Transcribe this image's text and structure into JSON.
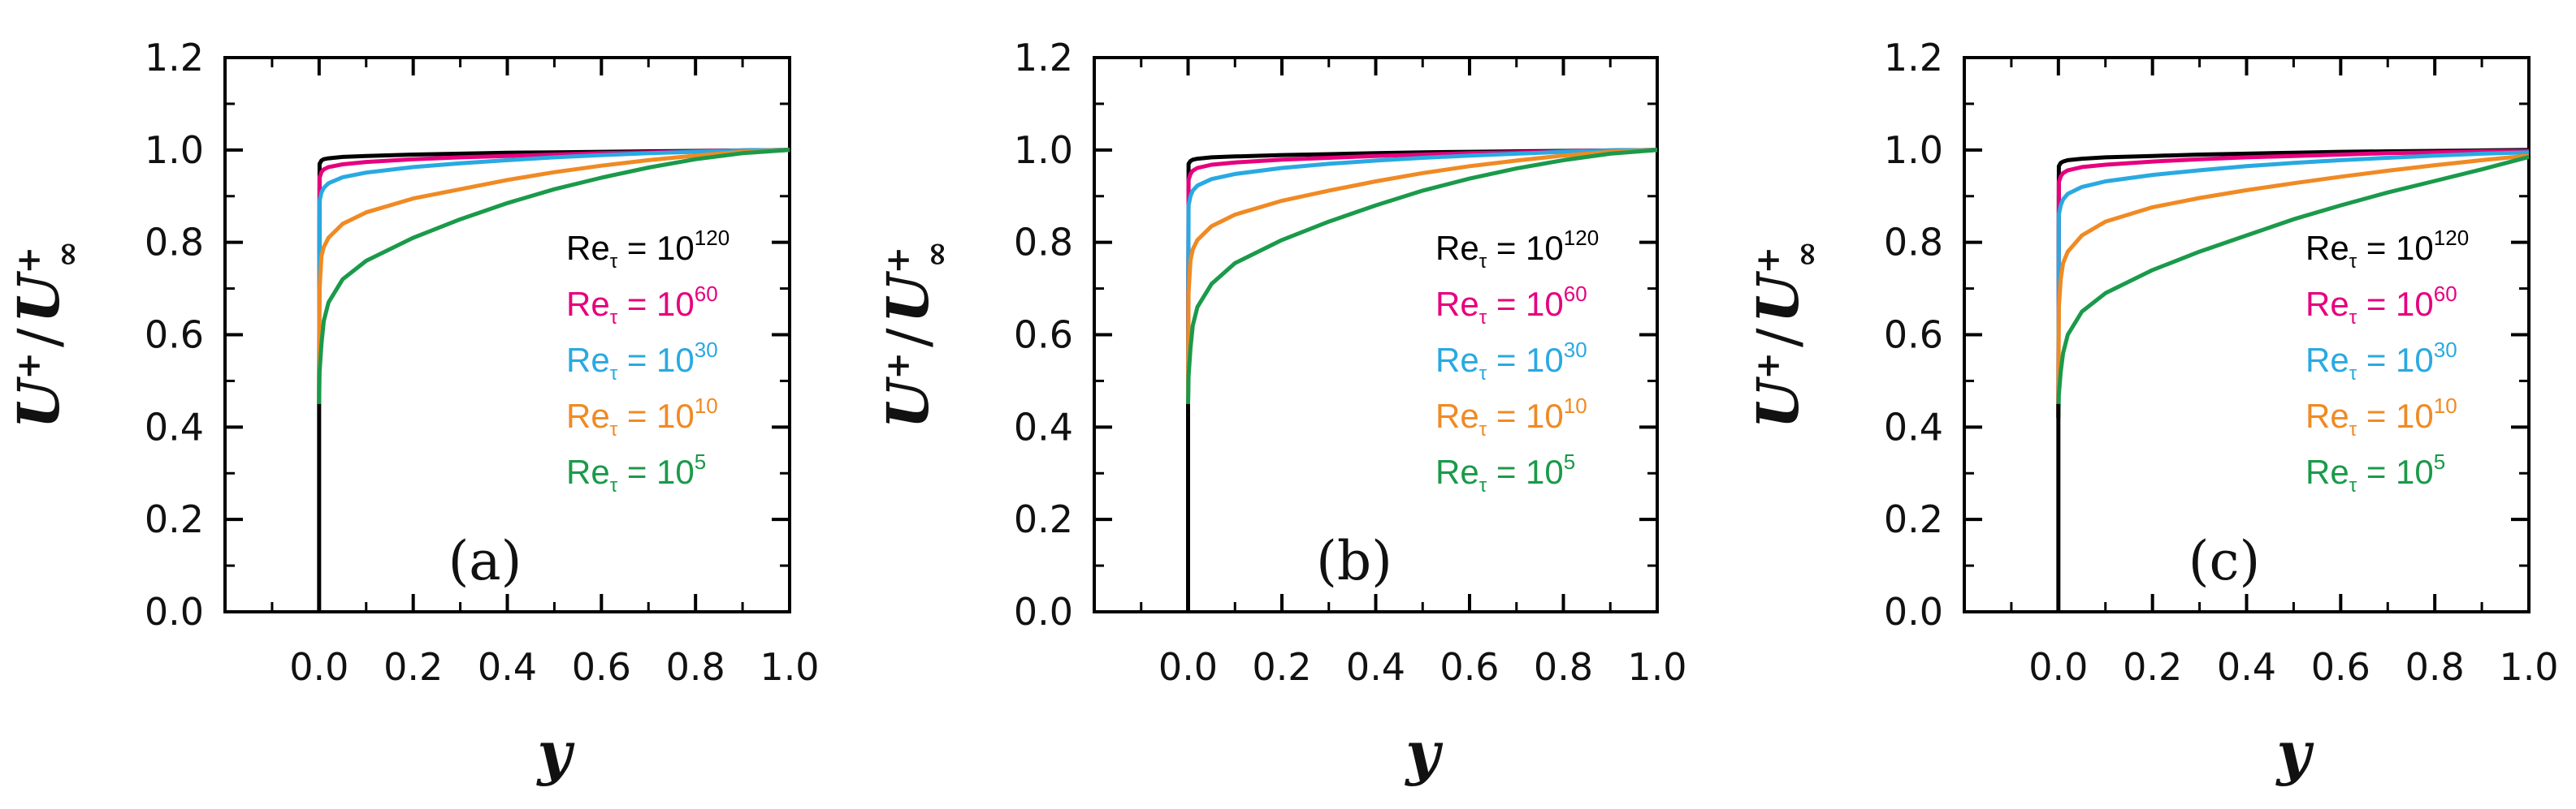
{
  "chart_data": [
    {
      "type": "line",
      "panel_label": "(a)",
      "xlabel": "y",
      "ylabel": {
        "base": "U",
        "sup": "+",
        "slash": "/",
        "base2": "U",
        "sup2": "+",
        "sub2": "∞"
      },
      "xlim": [
        -0.2,
        1.0
      ],
      "ylim": [
        0.0,
        1.2
      ],
      "x_ticks": [
        "0.0",
        "0.2",
        "0.4",
        "0.6",
        "0.8",
        "1.0"
      ],
      "y_ticks": [
        "0.0",
        "0.2",
        "0.4",
        "0.6",
        "0.8",
        "1.0",
        "1.2"
      ],
      "grid": false,
      "legend_position": "right",
      "series": [
        {
          "name": "Reτ = 10^120",
          "label_base": "Re",
          "label_sub": "τ",
          "label_mid": " = 10",
          "label_sup": "120",
          "color": "#000000",
          "x": [
            0,
            0.001,
            0.005,
            0.01,
            0.02,
            0.05,
            0.1,
            0.2,
            0.3,
            0.4,
            0.5,
            0.6,
            0.7,
            0.8,
            0.9,
            1.0
          ],
          "y": [
            0.45,
            0.97,
            0.977,
            0.98,
            0.982,
            0.985,
            0.987,
            0.99,
            0.992,
            0.994,
            0.995,
            0.996,
            0.997,
            0.998,
            0.999,
            1.0
          ]
        },
        {
          "name": "Reτ = 10^60",
          "label_base": "Re",
          "label_sub": "τ",
          "label_mid": " = 10",
          "label_sup": "60",
          "color": "#e6007e",
          "x": [
            0,
            0.001,
            0.005,
            0.01,
            0.02,
            0.05,
            0.1,
            0.2,
            0.3,
            0.4,
            0.5,
            0.6,
            0.7,
            0.8,
            0.9,
            1.0
          ],
          "y": [
            0.45,
            0.94,
            0.952,
            0.958,
            0.963,
            0.969,
            0.974,
            0.98,
            0.984,
            0.987,
            0.99,
            0.993,
            0.995,
            0.997,
            0.999,
            1.0
          ]
        },
        {
          "name": "Reτ = 10^30",
          "label_base": "Re",
          "label_sub": "τ",
          "label_mid": " = 10",
          "label_sup": "30",
          "color": "#29a9e1",
          "x": [
            0,
            0.001,
            0.005,
            0.01,
            0.02,
            0.05,
            0.1,
            0.2,
            0.3,
            0.4,
            0.5,
            0.6,
            0.7,
            0.8,
            0.9,
            1.0
          ],
          "y": [
            0.45,
            0.89,
            0.908,
            0.918,
            0.928,
            0.941,
            0.951,
            0.963,
            0.971,
            0.978,
            0.984,
            0.989,
            0.993,
            0.996,
            0.999,
            1.0
          ]
        },
        {
          "name": "Reτ = 10^10",
          "label_base": "Re",
          "label_sub": "τ",
          "label_mid": " = 10",
          "label_sup": "10",
          "color": "#f08a24",
          "x": [
            0,
            0.001,
            0.005,
            0.01,
            0.02,
            0.05,
            0.1,
            0.2,
            0.3,
            0.4,
            0.5,
            0.6,
            0.7,
            0.8,
            0.9,
            1.0
          ],
          "y": [
            0.45,
            0.7,
            0.77,
            0.79,
            0.81,
            0.84,
            0.865,
            0.895,
            0.915,
            0.935,
            0.952,
            0.966,
            0.978,
            0.988,
            0.996,
            1.0
          ]
        },
        {
          "name": "Reτ = 10^5",
          "label_base": "Re",
          "label_sub": "τ",
          "label_mid": " = 10",
          "label_sup": "5",
          "color": "#1a9a4a",
          "x": [
            0,
            0.001,
            0.005,
            0.01,
            0.02,
            0.05,
            0.1,
            0.2,
            0.3,
            0.4,
            0.5,
            0.6,
            0.7,
            0.8,
            0.9,
            1.0
          ],
          "y": [
            0.45,
            0.52,
            0.58,
            0.63,
            0.67,
            0.72,
            0.76,
            0.81,
            0.85,
            0.885,
            0.915,
            0.94,
            0.962,
            0.98,
            0.993,
            1.0
          ]
        }
      ]
    },
    {
      "type": "line",
      "panel_label": "(b)",
      "xlabel": "y",
      "ylabel": {
        "base": "U",
        "sup": "+",
        "slash": "/",
        "base2": "U",
        "sup2": "+",
        "sub2": "∞"
      },
      "xlim": [
        -0.2,
        1.0
      ],
      "ylim": [
        0.0,
        1.2
      ],
      "x_ticks": [
        "0.0",
        "0.2",
        "0.4",
        "0.6",
        "0.8",
        "1.0"
      ],
      "y_ticks": [
        "0.0",
        "0.2",
        "0.4",
        "0.6",
        "0.8",
        "1.0",
        "1.2"
      ],
      "grid": false,
      "legend_position": "right",
      "series": [
        {
          "name": "Reτ = 10^120",
          "label_base": "Re",
          "label_sub": "τ",
          "label_mid": " = 10",
          "label_sup": "120",
          "color": "#000000",
          "x": [
            0,
            0.001,
            0.005,
            0.01,
            0.02,
            0.05,
            0.1,
            0.2,
            0.3,
            0.4,
            0.5,
            0.6,
            0.7,
            0.8,
            0.9,
            1.0
          ],
          "y": [
            0.45,
            0.97,
            0.976,
            0.979,
            0.981,
            0.984,
            0.986,
            0.989,
            0.991,
            0.993,
            0.995,
            0.996,
            0.997,
            0.998,
            0.999,
            1.0
          ]
        },
        {
          "name": "Reτ = 10^60",
          "label_base": "Re",
          "label_sub": "τ",
          "label_mid": " = 10",
          "label_sup": "60",
          "color": "#e6007e",
          "x": [
            0,
            0.001,
            0.005,
            0.01,
            0.02,
            0.05,
            0.1,
            0.2,
            0.3,
            0.4,
            0.5,
            0.6,
            0.7,
            0.8,
            0.9,
            1.0
          ],
          "y": [
            0.45,
            0.935,
            0.948,
            0.955,
            0.961,
            0.968,
            0.973,
            0.979,
            0.983,
            0.987,
            0.99,
            0.993,
            0.995,
            0.997,
            0.999,
            1.0
          ]
        },
        {
          "name": "Reτ = 10^30",
          "label_base": "Re",
          "label_sub": "τ",
          "label_mid": " = 10",
          "label_sup": "30",
          "color": "#29a9e1",
          "x": [
            0,
            0.001,
            0.005,
            0.01,
            0.02,
            0.05,
            0.1,
            0.2,
            0.3,
            0.4,
            0.5,
            0.6,
            0.7,
            0.8,
            0.9,
            1.0
          ],
          "y": [
            0.45,
            0.88,
            0.9,
            0.912,
            0.923,
            0.937,
            0.948,
            0.961,
            0.97,
            0.977,
            0.983,
            0.988,
            0.992,
            0.996,
            0.999,
            1.0
          ]
        },
        {
          "name": "Reτ = 10^10",
          "label_base": "Re",
          "label_sub": "τ",
          "label_mid": " = 10",
          "label_sup": "10",
          "color": "#f08a24",
          "x": [
            0,
            0.001,
            0.005,
            0.01,
            0.02,
            0.05,
            0.1,
            0.2,
            0.3,
            0.4,
            0.5,
            0.6,
            0.7,
            0.8,
            0.9,
            1.0
          ],
          "y": [
            0.45,
            0.69,
            0.76,
            0.785,
            0.805,
            0.835,
            0.86,
            0.89,
            0.912,
            0.932,
            0.95,
            0.965,
            0.977,
            0.988,
            0.996,
            1.0
          ]
        },
        {
          "name": "Reτ = 10^5",
          "label_base": "Re",
          "label_sub": "τ",
          "label_mid": " = 10",
          "label_sup": "5",
          "color": "#1a9a4a",
          "x": [
            0,
            0.001,
            0.005,
            0.01,
            0.02,
            0.05,
            0.1,
            0.2,
            0.3,
            0.4,
            0.5,
            0.6,
            0.7,
            0.8,
            0.9,
            1.0
          ],
          "y": [
            0.45,
            0.51,
            0.57,
            0.62,
            0.66,
            0.71,
            0.755,
            0.805,
            0.845,
            0.88,
            0.912,
            0.938,
            0.96,
            0.978,
            0.992,
            1.0
          ]
        }
      ]
    },
    {
      "type": "line",
      "panel_label": "(c)",
      "xlabel": "y",
      "ylabel": {
        "base": "U",
        "sup": "+",
        "slash": "/",
        "base2": "U",
        "sup2": "+",
        "sub2": "∞"
      },
      "xlim": [
        -0.2,
        1.0
      ],
      "ylim": [
        0.0,
        1.2
      ],
      "x_ticks": [
        "0.0",
        "0.2",
        "0.4",
        "0.6",
        "0.8",
        "1.0"
      ],
      "y_ticks": [
        "0.0",
        "0.2",
        "0.4",
        "0.6",
        "0.8",
        "1.0",
        "1.2"
      ],
      "grid": false,
      "legend_position": "right",
      "series": [
        {
          "name": "Reτ = 10^120",
          "label_base": "Re",
          "label_sub": "τ",
          "label_mid": " = 10",
          "label_sup": "120",
          "color": "#000000",
          "x": [
            0,
            0.001,
            0.005,
            0.01,
            0.02,
            0.05,
            0.1,
            0.2,
            0.3,
            0.4,
            0.5,
            0.6,
            0.7,
            0.8,
            0.9,
            1.0
          ],
          "y": [
            0.42,
            0.965,
            0.972,
            0.975,
            0.978,
            0.981,
            0.984,
            0.987,
            0.99,
            0.992,
            0.994,
            0.996,
            0.997,
            0.998,
            0.999,
            1.0
          ]
        },
        {
          "name": "Reτ = 10^60",
          "label_base": "Re",
          "label_sub": "τ",
          "label_mid": " = 10",
          "label_sup": "60",
          "color": "#e6007e",
          "x": [
            0,
            0.001,
            0.005,
            0.01,
            0.02,
            0.05,
            0.1,
            0.2,
            0.3,
            0.4,
            0.5,
            0.6,
            0.7,
            0.8,
            0.9,
            1.0
          ],
          "y": [
            0.42,
            0.93,
            0.943,
            0.95,
            0.956,
            0.963,
            0.968,
            0.975,
            0.98,
            0.984,
            0.987,
            0.99,
            0.993,
            0.995,
            0.997,
            0.998
          ]
        },
        {
          "name": "Reτ = 10^30",
          "label_base": "Re",
          "label_sub": "τ",
          "label_mid": " = 10",
          "label_sup": "30",
          "color": "#29a9e1",
          "x": [
            0,
            0.001,
            0.005,
            0.01,
            0.02,
            0.05,
            0.1,
            0.2,
            0.3,
            0.4,
            0.5,
            0.6,
            0.7,
            0.8,
            0.9,
            1.0
          ],
          "y": [
            0.42,
            0.86,
            0.88,
            0.893,
            0.905,
            0.92,
            0.932,
            0.946,
            0.956,
            0.965,
            0.972,
            0.978,
            0.983,
            0.988,
            0.992,
            0.995
          ]
        },
        {
          "name": "Reτ = 10^10",
          "label_base": "Re",
          "label_sub": "τ",
          "label_mid": " = 10",
          "label_sup": "10",
          "color": "#f08a24",
          "x": [
            0,
            0.001,
            0.005,
            0.01,
            0.02,
            0.05,
            0.1,
            0.2,
            0.3,
            0.4,
            0.5,
            0.6,
            0.7,
            0.8,
            0.9,
            1.0
          ],
          "y": [
            0.42,
            0.66,
            0.72,
            0.755,
            0.78,
            0.815,
            0.845,
            0.876,
            0.896,
            0.913,
            0.928,
            0.942,
            0.955,
            0.967,
            0.978,
            0.988
          ]
        },
        {
          "name": "Reτ = 10^5",
          "label_base": "Re",
          "label_sub": "τ",
          "label_mid": " = 10",
          "label_sup": "5",
          "color": "#1a9a4a",
          "x": [
            0,
            0.001,
            0.005,
            0.01,
            0.02,
            0.05,
            0.1,
            0.2,
            0.3,
            0.4,
            0.5,
            0.6,
            0.7,
            0.8,
            0.9,
            1.0
          ],
          "y": [
            0.42,
            0.47,
            0.52,
            0.56,
            0.6,
            0.65,
            0.69,
            0.74,
            0.78,
            0.815,
            0.85,
            0.88,
            0.908,
            0.933,
            0.958,
            0.985
          ]
        }
      ]
    }
  ]
}
